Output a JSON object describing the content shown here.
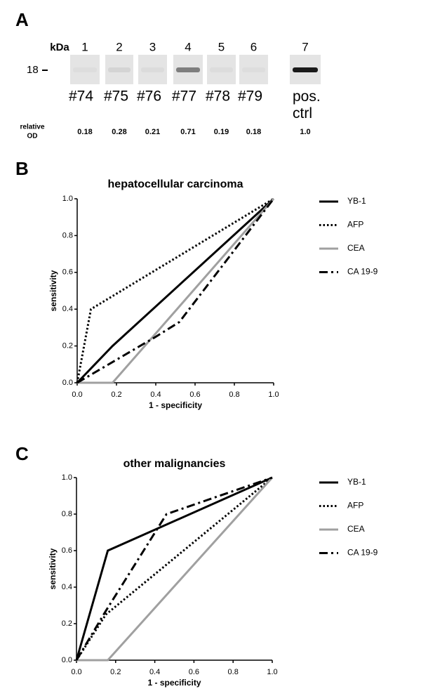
{
  "panels": [
    "A",
    "B",
    "C"
  ],
  "blot": {
    "unit": "kDa",
    "marker": "18",
    "od_title": [
      "relative",
      "OD"
    ],
    "lanes": [
      {
        "number": "1",
        "sample": "#74",
        "od": "0.18"
      },
      {
        "number": "2",
        "sample": "#75",
        "od": "0.28"
      },
      {
        "number": "3",
        "sample": "#76",
        "od": "0.21"
      },
      {
        "number": "4",
        "sample": "#77",
        "od": "0.71"
      },
      {
        "number": "5",
        "sample": "#78",
        "od": "0.19"
      },
      {
        "number": "6",
        "sample": "#79",
        "od": "0.18"
      },
      {
        "number": "7",
        "sample": "pos. ctrl",
        "od": "1.0"
      }
    ]
  },
  "chart_data": [
    {
      "type": "line",
      "title": "hepatocellular carcinoma",
      "x_label": "1 - specificity",
      "y_label": "sensitivity",
      "xlim": [
        0,
        1
      ],
      "ylim": [
        0,
        1
      ],
      "xticks": [
        {
          "value": 0,
          "label": "0.0"
        },
        0.2,
        0.4,
        0.6,
        0.8,
        {
          "value": 1,
          "label": "1.0"
        }
      ],
      "yticks": [
        {
          "value": 0,
          "label": "0.0"
        },
        0.2,
        0.4,
        0.6,
        0.8,
        {
          "value": 1,
          "label": "1.0"
        }
      ],
      "legend": "right",
      "series": [
        {
          "name": "YB-1",
          "color": "#000000",
          "dash": "solid",
          "x": [
            0,
            0.18,
            1
          ],
          "values": [
            0,
            0.2,
            1
          ]
        },
        {
          "name": "AFP",
          "color": "#000000",
          "dash": "dotted",
          "x": [
            0,
            0.07,
            1
          ],
          "values": [
            0,
            0.4,
            1
          ]
        },
        {
          "name": "CEA",
          "color": "#a0a0a0",
          "dash": "solid",
          "x": [
            0,
            0.18,
            1
          ],
          "values": [
            0,
            0,
            1
          ]
        },
        {
          "name": "CA 19-9",
          "color": "#000000",
          "dash": "dashdot",
          "x": [
            0,
            0.4,
            0.52,
            1
          ],
          "values": [
            0,
            0.25,
            0.33,
            1
          ]
        }
      ]
    },
    {
      "type": "line",
      "title": "other malignancies",
      "x_label": "1 - specificity",
      "y_label": "sensitivity",
      "xlim": [
        0,
        1
      ],
      "ylim": [
        0,
        1
      ],
      "xticks": [
        {
          "value": 0,
          "label": "0.0"
        },
        0.2,
        0.4,
        0.6,
        0.8,
        {
          "value": 1,
          "label": "1.0"
        }
      ],
      "yticks": [
        {
          "value": 0,
          "label": "0.0"
        },
        0.2,
        0.4,
        0.6,
        0.8,
        {
          "value": 1,
          "label": "1.0"
        }
      ],
      "legend": "right",
      "series": [
        {
          "name": "YB-1",
          "color": "#000000",
          "dash": "solid",
          "x": [
            0,
            0.16,
            1
          ],
          "values": [
            0,
            0.6,
            1
          ]
        },
        {
          "name": "AFP",
          "color": "#000000",
          "dash": "dotted",
          "x": [
            0,
            0.15,
            1
          ],
          "values": [
            0,
            0.25,
            1
          ]
        },
        {
          "name": "CEA",
          "color": "#a0a0a0",
          "dash": "solid",
          "x": [
            0,
            0.16,
            1
          ],
          "values": [
            0,
            0,
            1
          ]
        },
        {
          "name": "CA 19-9",
          "color": "#000000",
          "dash": "dashdot",
          "x": [
            0,
            0.15,
            0.46,
            1
          ],
          "values": [
            0,
            0.27,
            0.8,
            1
          ]
        }
      ]
    }
  ]
}
